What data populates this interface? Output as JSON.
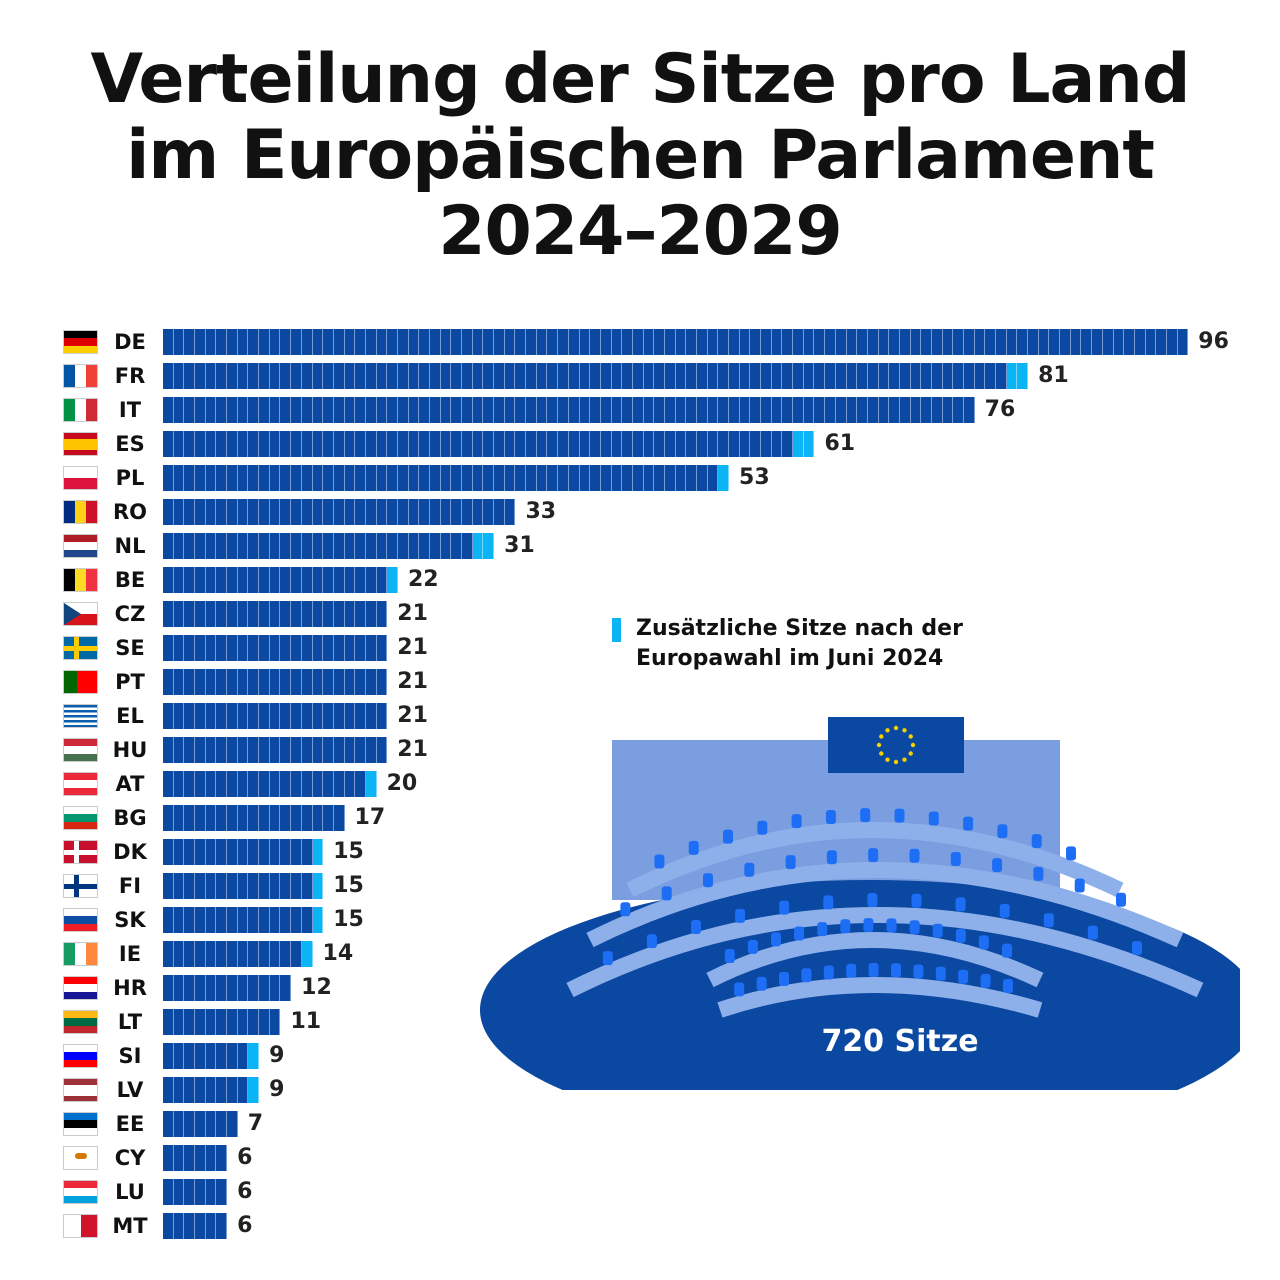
{
  "title": {
    "lines": [
      "Verteilung der Sitze pro Land",
      "im Europäischen Parlament",
      "2024–2029"
    ]
  },
  "legend": {
    "text": "Zusätzliche Sitze nach der Europawahl im Juni 2024",
    "color": "#0ab4f5"
  },
  "total_label": "720 Sitze",
  "colors": {
    "base_seat": "#0b48a1",
    "extra_seat": "#0ab4f5"
  },
  "chart_data": {
    "type": "bar",
    "orientation": "horizontal",
    "title": "Verteilung der Sitze pro Land im Europäischen Parlament 2024–2029",
    "xlabel": "",
    "ylabel": "",
    "total": 720,
    "categories": [
      "DE",
      "FR",
      "IT",
      "ES",
      "PL",
      "RO",
      "NL",
      "BE",
      "CZ",
      "SE",
      "PT",
      "EL",
      "HU",
      "AT",
      "BG",
      "DK",
      "FI",
      "SK",
      "IE",
      "HR",
      "LT",
      "SI",
      "LV",
      "EE",
      "CY",
      "LU",
      "MT"
    ],
    "series": [
      {
        "name": "Sitze",
        "values": [
          96,
          79,
          76,
          59,
          52,
          33,
          29,
          21,
          21,
          21,
          21,
          21,
          21,
          19,
          17,
          14,
          14,
          14,
          13,
          12,
          11,
          8,
          8,
          7,
          6,
          6,
          6
        ]
      },
      {
        "name": "Zusätzliche Sitze nach der Europawahl im Juni 2024",
        "values": [
          0,
          2,
          0,
          2,
          1,
          0,
          2,
          1,
          0,
          0,
          0,
          0,
          0,
          1,
          0,
          1,
          1,
          1,
          1,
          0,
          0,
          1,
          1,
          0,
          0,
          0,
          0
        ]
      }
    ],
    "totals": [
      96,
      81,
      76,
      61,
      53,
      33,
      31,
      22,
      21,
      21,
      21,
      21,
      21,
      20,
      17,
      15,
      15,
      15,
      14,
      12,
      11,
      9,
      9,
      7,
      6,
      6,
      6
    ],
    "legend_position": "right-middle"
  }
}
